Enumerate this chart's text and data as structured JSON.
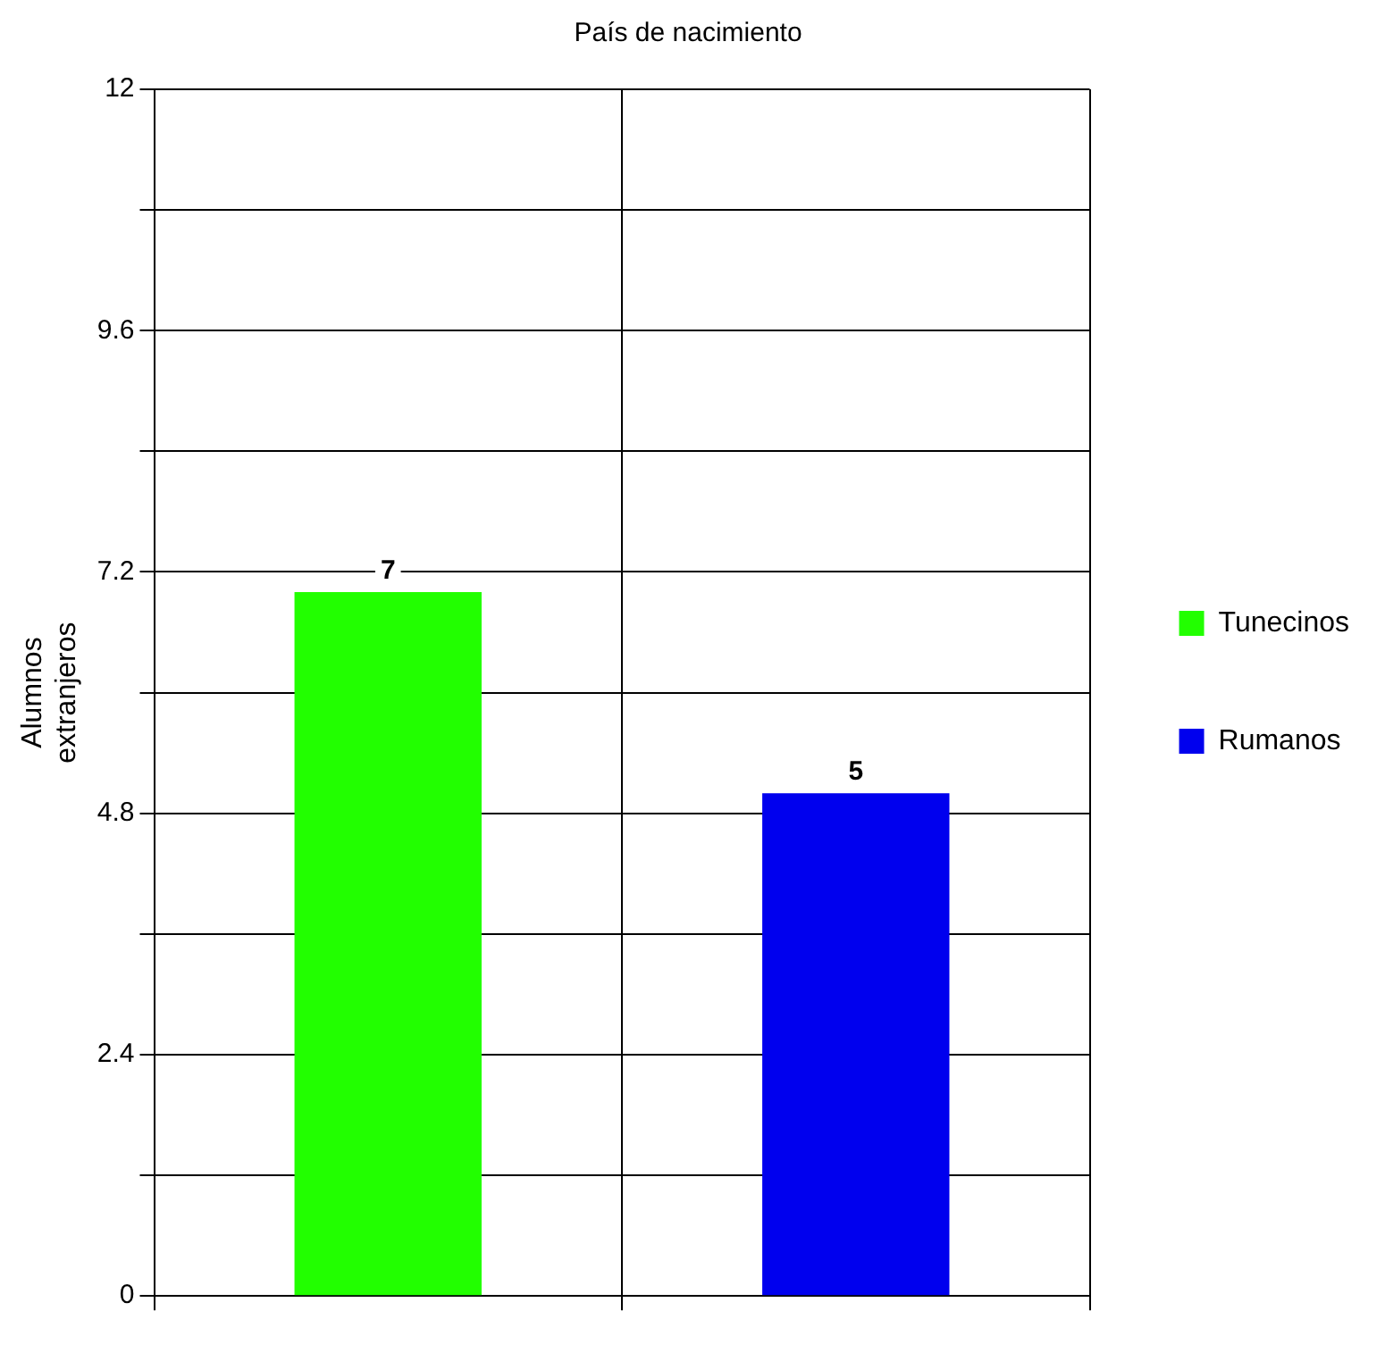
{
  "chart_data": {
    "type": "bar",
    "title": "País de nacimiento",
    "ylabel": "Alumnos extranjeros",
    "categories": [
      null,
      null
    ],
    "series": [
      {
        "name": "Tunecinos",
        "color": "#22ff00",
        "values": [
          7,
          null
        ]
      },
      {
        "name": "Rumanos",
        "color": "#0000ee",
        "values": [
          null,
          5
        ]
      }
    ],
    "ylim": [
      0,
      12
    ],
    "yticks": [
      0,
      {
        "value": 1.2,
        "label": null
      },
      2.4,
      {
        "value": 3.6,
        "label": null
      },
      4.8,
      {
        "value": 6,
        "label": null
      },
      7.2,
      {
        "value": 8.4,
        "label": null
      },
      9.6,
      {
        "value": 10.8,
        "label": null
      },
      12
    ],
    "grid": true,
    "legend": "right",
    "data_labels": true
  }
}
